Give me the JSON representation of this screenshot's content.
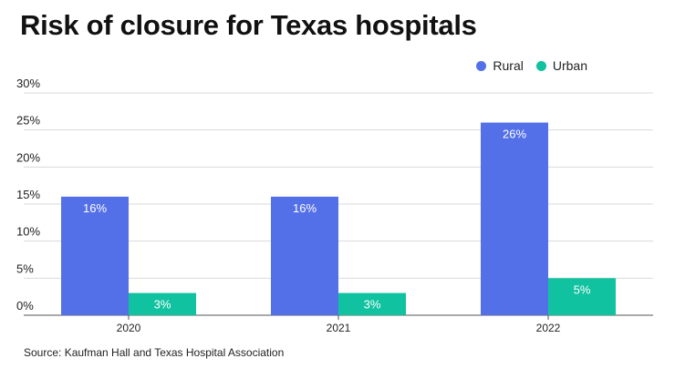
{
  "title": "Risk of closure for Texas hospitals",
  "source": "Source: Kaufman Hall and Texas Hospital Association",
  "colors": {
    "rural": "#5470e8",
    "urban": "#11c2a0",
    "grid": "#d9d9d9",
    "axis": "#555555"
  },
  "chart_data": {
    "type": "bar",
    "title": "Risk of closure for Texas hospitals",
    "xlabel": "",
    "ylabel": "",
    "categories": [
      "2020",
      "2021",
      "2022"
    ],
    "series": [
      {
        "name": "Rural",
        "values": [
          16,
          16,
          26
        ],
        "labels": [
          "16%",
          "16%",
          "26%"
        ]
      },
      {
        "name": "Urban",
        "values": [
          3,
          3,
          5
        ],
        "labels": [
          "3%",
          "3%",
          "5%"
        ]
      }
    ],
    "ylim": [
      0,
      30
    ],
    "yticks": [
      0,
      5,
      10,
      15,
      20,
      25,
      30
    ],
    "ytick_labels": [
      "0%",
      "5%",
      "10%",
      "15%",
      "20%",
      "25%",
      "30%"
    ],
    "grid": true,
    "legend_position": "top-right"
  }
}
